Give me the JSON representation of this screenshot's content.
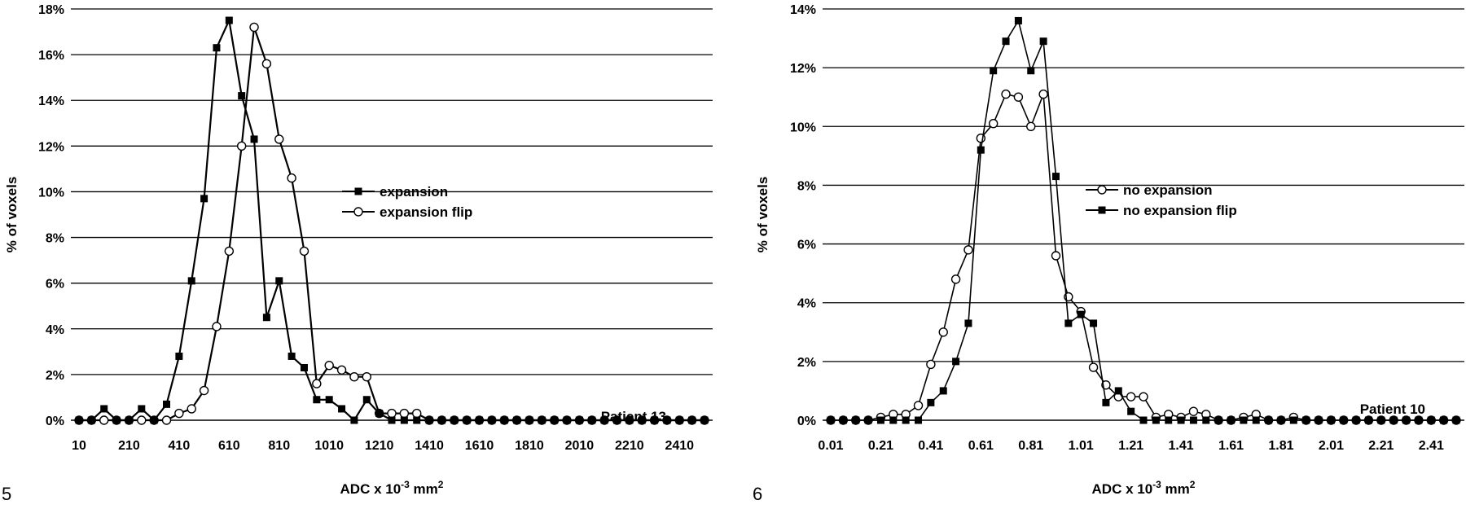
{
  "figure_labels": {
    "left": "5",
    "right": "6"
  },
  "chart_data": [
    {
      "type": "line",
      "ylabel": "% of voxels",
      "xlabel": "ADC x 10-3 mm2",
      "xlabel_parts": {
        "main": "ADC x 10",
        "sup1": "-3",
        "mid": " mm",
        "sup2": "2"
      },
      "annotation": "Patient 13",
      "ylim": [
        0,
        18
      ],
      "yticks": [
        0,
        2,
        4,
        6,
        8,
        10,
        12,
        14,
        16,
        18
      ],
      "yticklabels": [
        "0%",
        "2%",
        "4%",
        "6%",
        "8%",
        "10%",
        "12%",
        "14%",
        "16%",
        "18%"
      ],
      "xticklabels": [
        "10",
        "210",
        "410",
        "610",
        "810",
        "1010",
        "1210",
        "1410",
        "1610",
        "1810",
        "2010",
        "2210",
        "2410"
      ],
      "grid": true,
      "legend_position": "center-right",
      "x": [
        10,
        60,
        110,
        160,
        210,
        260,
        310,
        360,
        410,
        460,
        510,
        560,
        610,
        660,
        710,
        760,
        810,
        860,
        910,
        960,
        1010,
        1060,
        1110,
        1160,
        1210,
        1260,
        1310,
        1360,
        1410,
        1460,
        1510,
        1560,
        1610,
        1660,
        1710,
        1760,
        1810,
        1860,
        1910,
        1960,
        2010,
        2060,
        2110,
        2160,
        2210,
        2260,
        2310,
        2360,
        2410,
        2460,
        2510
      ],
      "series": [
        {
          "name": "expansion",
          "marker": "filled-square",
          "values": [
            0,
            0,
            0.5,
            0,
            0,
            0.5,
            0,
            0.7,
            2.8,
            6.1,
            9.7,
            16.3,
            17.5,
            14.2,
            12.3,
            4.5,
            6.1,
            2.8,
            2.3,
            0.9,
            0.9,
            0.5,
            0,
            0.9,
            0.3,
            0,
            0,
            0,
            0,
            0,
            0,
            0,
            0,
            0,
            0,
            0,
            0,
            0,
            0,
            0,
            0,
            0,
            0,
            0,
            0,
            0,
            0,
            0,
            0,
            0,
            0
          ]
        },
        {
          "name": "expansion flip",
          "marker": "open-circle",
          "values": [
            0,
            0,
            0,
            0,
            0,
            0,
            0,
            0,
            0.3,
            0.5,
            1.3,
            4.1,
            7.4,
            12.0,
            17.2,
            15.6,
            12.3,
            10.6,
            7.4,
            1.6,
            2.4,
            2.2,
            1.9,
            1.9,
            0.3,
            0.3,
            0.3,
            0.3,
            0,
            0,
            0,
            0,
            0,
            0,
            0,
            0,
            0,
            0,
            0,
            0,
            0,
            0,
            0,
            0,
            0,
            0,
            0,
            0,
            0,
            0,
            0
          ]
        }
      ]
    },
    {
      "type": "line",
      "ylabel": "% of voxels",
      "xlabel": "ADC x 10-3 mm2",
      "xlabel_parts": {
        "main": "ADC x 10",
        "sup1": "-3",
        "mid": " mm",
        "sup2": "2"
      },
      "annotation": "Patient 10",
      "ylim": [
        0,
        14
      ],
      "yticks": [
        0,
        2,
        4,
        6,
        8,
        10,
        12,
        14
      ],
      "yticklabels": [
        "0%",
        "2%",
        "4%",
        "6%",
        "8%",
        "10%",
        "12%",
        "14%"
      ],
      "xticklabels": [
        "0.01",
        "0.21",
        "0.41",
        "0.61",
        "0.81",
        "1.01",
        "1.21",
        "1.41",
        "1.61",
        "1.81",
        "2.01",
        "2.21",
        "2.41"
      ],
      "grid": true,
      "legend_position": "center-right",
      "x": [
        0.01,
        0.06,
        0.11,
        0.16,
        0.21,
        0.26,
        0.31,
        0.36,
        0.41,
        0.46,
        0.51,
        0.56,
        0.61,
        0.66,
        0.71,
        0.76,
        0.81,
        0.86,
        0.91,
        0.96,
        1.01,
        1.06,
        1.11,
        1.16,
        1.21,
        1.26,
        1.31,
        1.36,
        1.41,
        1.46,
        1.51,
        1.56,
        1.61,
        1.66,
        1.71,
        1.76,
        1.81,
        1.86,
        1.91,
        1.96,
        2.01,
        2.06,
        2.11,
        2.16,
        2.21,
        2.26,
        2.31,
        2.36,
        2.41,
        2.46,
        2.51
      ],
      "series": [
        {
          "name": "no expansion",
          "marker": "open-circle",
          "values": [
            0,
            0,
            0,
            0,
            0.1,
            0.2,
            0.2,
            0.5,
            1.9,
            3.0,
            4.8,
            5.8,
            9.6,
            10.1,
            11.1,
            11.0,
            10.0,
            11.1,
            5.6,
            4.2,
            3.7,
            1.8,
            1.2,
            0.8,
            0.8,
            0.8,
            0.1,
            0.2,
            0.1,
            0.3,
            0.2,
            0,
            0,
            0.1,
            0.2,
            0,
            0,
            0.1,
            0,
            0,
            0,
            0,
            0,
            0,
            0,
            0,
            0,
            0,
            0,
            0,
            0
          ]
        },
        {
          "name": "no expansion flip",
          "marker": "filled-square",
          "values": [
            0,
            0,
            0,
            0,
            0,
            0,
            0,
            0,
            0.6,
            1.0,
            2.0,
            3.3,
            9.2,
            11.9,
            12.9,
            13.6,
            11.9,
            12.9,
            8.3,
            3.3,
            3.6,
            3.3,
            0.6,
            1.0,
            0.3,
            0,
            0,
            0,
            0,
            0,
            0,
            0,
            0,
            0,
            0,
            0,
            0,
            0,
            0,
            0,
            0,
            0,
            0,
            0,
            0,
            0,
            0,
            0,
            0,
            0,
            0
          ]
        }
      ]
    }
  ]
}
